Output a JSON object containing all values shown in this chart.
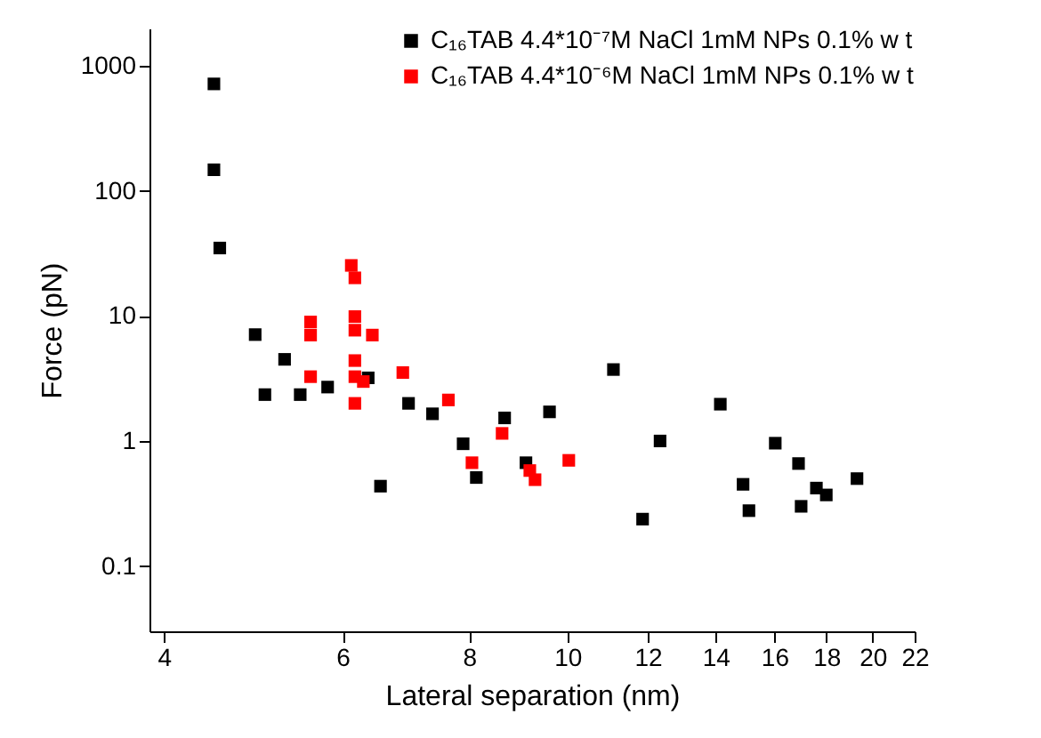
{
  "chart_data": {
    "type": "scatter",
    "xlabel": "Lateral separation (nm)",
    "ylabel": "Force (pN)",
    "log": "xy",
    "marker": "square",
    "legend": "top right",
    "xlim": [
      3.87,
      22
    ],
    "xticks": [
      4,
      6,
      8,
      10,
      12,
      14,
      16,
      18,
      20,
      22
    ],
    "ylim": [
      0.03,
      2000
    ],
    "yticks": [
      0.1,
      1,
      10,
      100,
      1000
    ],
    "series": [
      {
        "name": "C₁₆TAB 4.4*10⁻⁷M NaCl 1mM NPs 0.1% w t",
        "color": "#000000",
        "x": [
          4.48,
          4.48,
          4.54,
          4.92,
          5.03,
          5.26,
          5.45,
          5.8,
          6.36,
          6.54,
          6.97,
          7.36,
          7.89,
          8.13,
          8.67,
          9.1,
          9.6,
          11.1,
          11.86,
          12.34,
          14.15,
          14.9,
          15.1,
          16.03,
          16.9,
          17.0,
          17.6,
          18.0,
          19.3
        ],
        "values": [
          720,
          148,
          35,
          7.1,
          2.35,
          4.5,
          2.35,
          2.7,
          3.2,
          0.435,
          2.0,
          1.65,
          0.95,
          0.51,
          1.53,
          0.67,
          1.71,
          3.73,
          0.237,
          1.0,
          1.97,
          0.45,
          0.277,
          0.96,
          0.66,
          0.3,
          0.42,
          0.37,
          0.5
        ]
      },
      {
        "name": "C₁₆TAB 4.4*10⁻⁶M NaCl 1mM NPs 0.1% w t",
        "color": "#ff0000",
        "x": [
          6.12,
          6.17,
          5.58,
          5.58,
          6.17,
          6.17,
          6.42,
          6.17,
          5.58,
          6.17,
          6.29,
          6.17,
          6.88,
          7.63,
          8.05,
          8.62,
          9.18,
          9.29,
          10.03
        ],
        "values": [
          25.4,
          20.2,
          8.97,
          7.04,
          9.9,
          7.7,
          7.04,
          4.4,
          3.27,
          3.27,
          2.99,
          2.0,
          3.53,
          2.13,
          0.67,
          1.15,
          0.58,
          0.49,
          0.7
        ]
      }
    ]
  }
}
